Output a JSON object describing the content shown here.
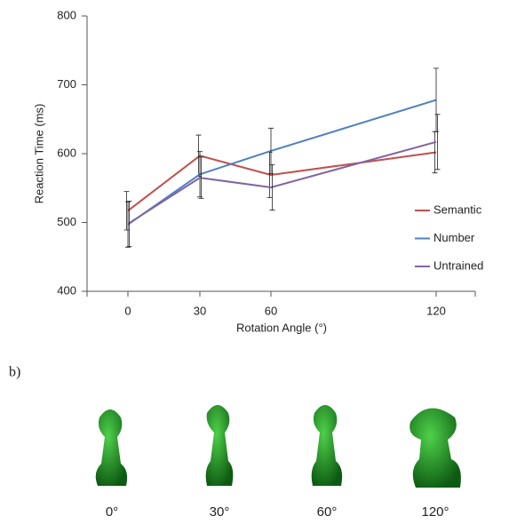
{
  "chart_data": {
    "type": "line",
    "xlabel": "Rotation Angle (°)",
    "ylabel": "Reaction Time (ms)",
    "categories": [
      "0",
      "30",
      "60",
      "120"
    ],
    "series": [
      {
        "name": "Semantic",
        "color": "#c0504d",
        "values": [
          517,
          597,
          569,
          602
        ],
        "errors": [
          28,
          30,
          33,
          30
        ]
      },
      {
        "name": "Number",
        "color": "#4f81bd",
        "values": [
          497,
          570,
          604,
          678
        ],
        "errors": [
          33,
          33,
          33,
          46
        ]
      },
      {
        "name": "Untrained",
        "color": "#8064a2",
        "values": [
          498,
          565,
          551,
          617
        ],
        "errors": [
          33,
          30,
          33,
          40
        ]
      }
    ],
    "ylim": [
      400,
      800
    ],
    "yticks": [
      400,
      500,
      600,
      700,
      800
    ],
    "legend": "right"
  },
  "panel_b": {
    "label": "b)",
    "images": [
      "0°",
      "30°",
      "60°",
      "120°"
    ]
  }
}
